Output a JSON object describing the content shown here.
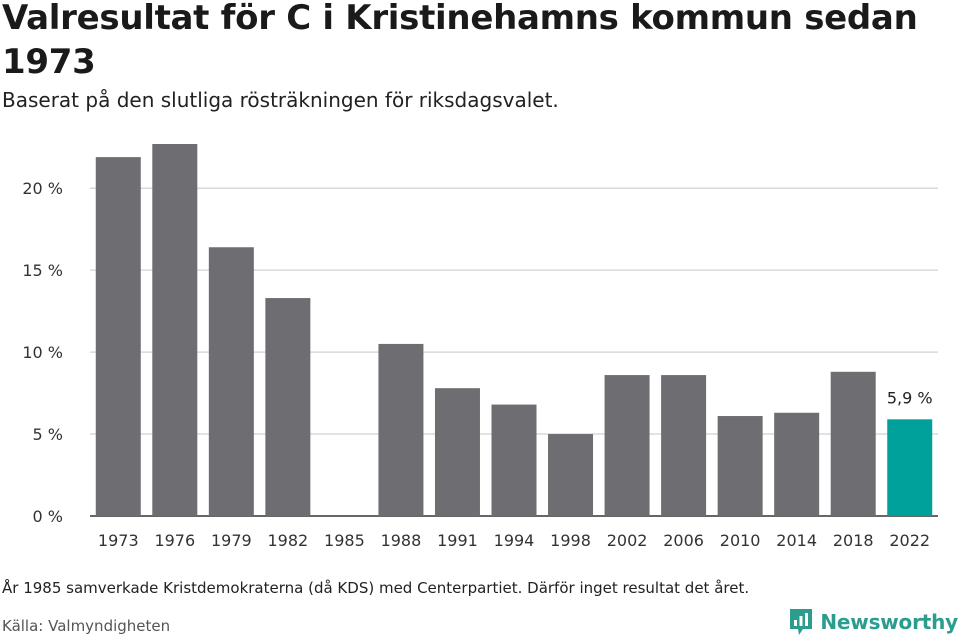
{
  "title": "Valresultat för C i Kristinehamns kommun sedan 1973",
  "subtitle": "Baserat på den slutliga rösträkningen för riksdagsvalet.",
  "note": "År 1985 samverkade Kristdemokraterna (då KDS) med Centerpartiet. Därför inget resultat det året.",
  "source": "Källa: Valmyndigheten",
  "brand": {
    "name": "Newsworthy",
    "icon": "newsworthy-logo-icon",
    "color": "#2a9d8f"
  },
  "colors": {
    "bar": "#6e6d72",
    "highlight": "#00a19a",
    "grid": "#d9d9d9",
    "axis": "#333333"
  },
  "chart_data": {
    "type": "bar",
    "categories": [
      "1973",
      "1976",
      "1979",
      "1982",
      "1985",
      "1988",
      "1991",
      "1994",
      "1998",
      "2002",
      "2006",
      "2010",
      "2014",
      "2018",
      "2022"
    ],
    "values": [
      21.9,
      22.7,
      16.4,
      13.3,
      null,
      10.5,
      7.8,
      6.8,
      5.0,
      8.6,
      8.6,
      6.1,
      6.3,
      8.8,
      5.9
    ],
    "highlight_index": 14,
    "highlight_label": "5,9 %",
    "ylim": [
      0,
      22.7
    ],
    "yticks": [
      0,
      5,
      10,
      15,
      20
    ],
    "ytick_labels": [
      "0 %",
      "5 %",
      "10 %",
      "15 %",
      "20 %"
    ],
    "grid": true,
    "xlabel": "",
    "ylabel": ""
  }
}
